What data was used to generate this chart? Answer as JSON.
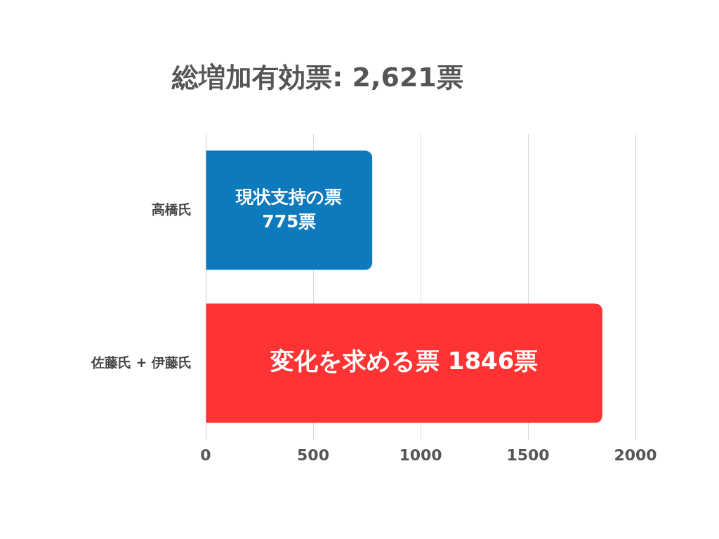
{
  "chart_data": {
    "type": "bar",
    "orientation": "horizontal",
    "title": "総増加有効票: 2,621票",
    "categories": [
      "高橋氏",
      "佐藤氏 + 伊藤氏"
    ],
    "values": [
      775,
      1846
    ],
    "colors": [
      "#0e7abe",
      "#ff3333"
    ],
    "value_labels": [
      "現状支持の票 775票",
      "変化を求める票 1846票"
    ],
    "xlim": [
      0,
      2000
    ],
    "xticks": [
      0,
      500,
      1000,
      1500,
      2000
    ],
    "grid": "x",
    "legend": false
  }
}
